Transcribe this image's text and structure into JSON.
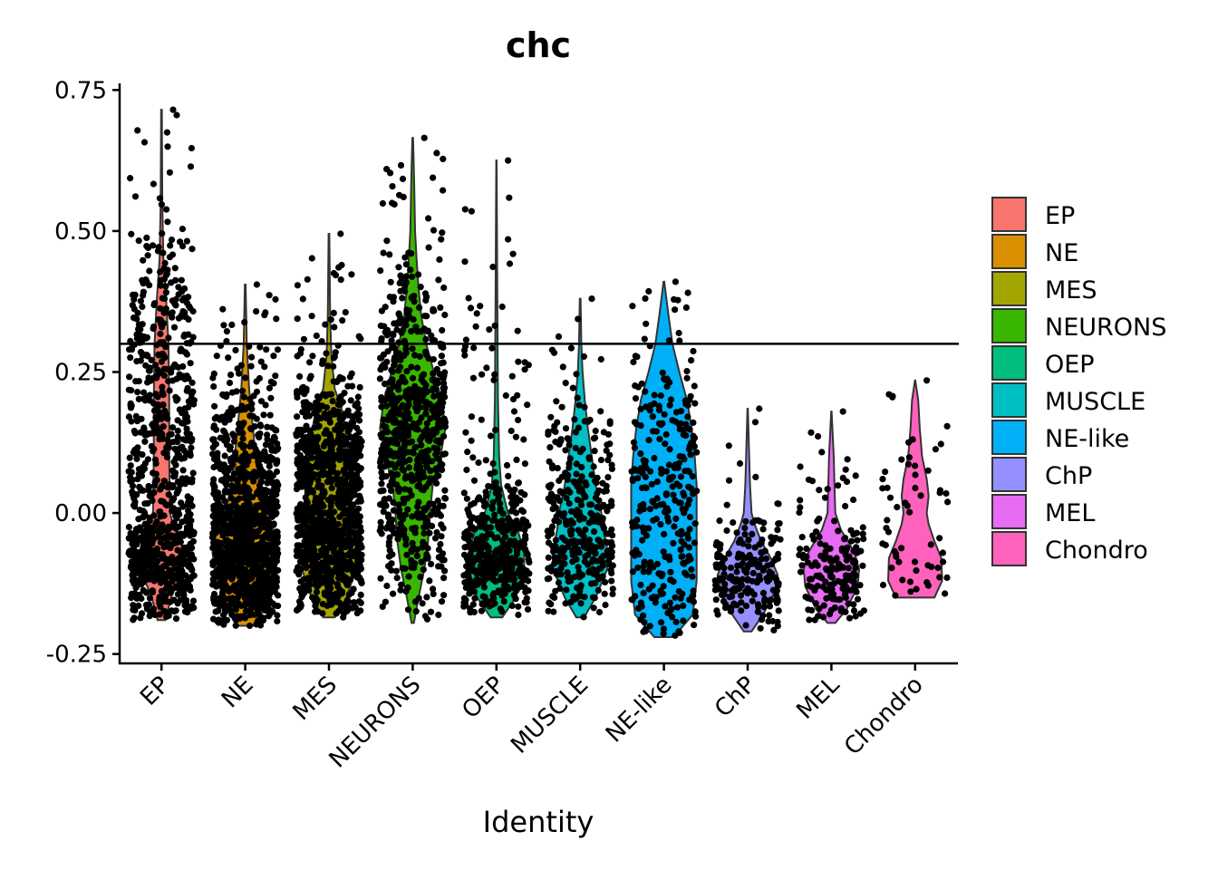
{
  "chart_data": {
    "type": "violin",
    "title": "chc",
    "xlabel": "Identity",
    "ylabel": "",
    "ylim": [
      -0.265,
      0.765
    ],
    "yticks": [
      -0.25,
      0.0,
      0.25,
      0.5,
      0.75
    ],
    "ytick_labels": [
      "-0.25",
      "0.00",
      "0.25",
      "0.50",
      "0.75"
    ],
    "reference_line": 0.3,
    "legend_position": "right",
    "grid": false,
    "categories": [
      "EP",
      "NE",
      "MES",
      "NEURONS",
      "OEP",
      "MUSCLE",
      "NE-like",
      "ChP",
      "MEL",
      "Chondro"
    ],
    "series": [
      {
        "name": "EP",
        "color": "#F8766D",
        "min": -0.19,
        "max": 0.715,
        "max_point": 0.715,
        "profile": [
          [
            -0.19,
            0.1
          ],
          [
            -0.15,
            0.25
          ],
          [
            -0.1,
            0.55
          ],
          [
            -0.08,
            0.6
          ],
          [
            -0.05,
            0.5
          ],
          [
            -0.02,
            0.3
          ],
          [
            0.0,
            0.22
          ],
          [
            0.1,
            0.2
          ],
          [
            0.2,
            0.2
          ],
          [
            0.3,
            0.18
          ],
          [
            0.38,
            0.12
          ],
          [
            0.45,
            0.05
          ],
          [
            0.55,
            0.02
          ],
          [
            0.715,
            0.01
          ]
        ]
      },
      {
        "name": "NE",
        "color": "#D89000",
        "min": -0.2,
        "max": 0.405,
        "max_point": 0.405,
        "profile": [
          [
            -0.2,
            0.2
          ],
          [
            -0.16,
            0.5
          ],
          [
            -0.1,
            0.8
          ],
          [
            -0.07,
            0.85
          ],
          [
            -0.02,
            0.7
          ],
          [
            0.02,
            0.45
          ],
          [
            0.08,
            0.3
          ],
          [
            0.15,
            0.2
          ],
          [
            0.22,
            0.1
          ],
          [
            0.3,
            0.04
          ],
          [
            0.405,
            0.01
          ]
        ]
      },
      {
        "name": "MES",
        "color": "#A3A500",
        "min": -0.185,
        "max": 0.495,
        "max_point": 0.495,
        "profile": [
          [
            -0.185,
            0.15
          ],
          [
            -0.15,
            0.45
          ],
          [
            -0.1,
            0.7
          ],
          [
            -0.07,
            0.72
          ],
          [
            -0.02,
            0.6
          ],
          [
            0.05,
            0.55
          ],
          [
            0.12,
            0.5
          ],
          [
            0.18,
            0.35
          ],
          [
            0.22,
            0.15
          ],
          [
            0.28,
            0.06
          ],
          [
            0.35,
            0.03
          ],
          [
            0.495,
            0.01
          ]
        ]
      },
      {
        "name": "NEURONS",
        "color": "#39B600",
        "min": -0.195,
        "max": 0.665,
        "max_point": 0.665,
        "profile": [
          [
            -0.195,
            0.03
          ],
          [
            -0.15,
            0.15
          ],
          [
            -0.1,
            0.3
          ],
          [
            -0.05,
            0.4
          ],
          [
            0.0,
            0.45
          ],
          [
            0.05,
            0.52
          ],
          [
            0.1,
            0.72
          ],
          [
            0.15,
            0.85
          ],
          [
            0.2,
            0.75
          ],
          [
            0.25,
            0.55
          ],
          [
            0.3,
            0.35
          ],
          [
            0.35,
            0.22
          ],
          [
            0.4,
            0.15
          ],
          [
            0.45,
            0.1
          ],
          [
            0.5,
            0.06
          ],
          [
            0.58,
            0.04
          ],
          [
            0.665,
            0.01
          ]
        ]
      },
      {
        "name": "OEP",
        "color": "#00BF7D",
        "min": -0.185,
        "max": 0.625,
        "max_point": 0.625,
        "profile": [
          [
            -0.185,
            0.15
          ],
          [
            -0.15,
            0.5
          ],
          [
            -0.1,
            0.72
          ],
          [
            -0.07,
            0.72
          ],
          [
            -0.03,
            0.55
          ],
          [
            0.0,
            0.3
          ],
          [
            0.05,
            0.12
          ],
          [
            0.1,
            0.07
          ],
          [
            0.2,
            0.04
          ],
          [
            0.3,
            0.03
          ],
          [
            0.4,
            0.02
          ],
          [
            0.625,
            0.005
          ]
        ]
      },
      {
        "name": "MUSCLE",
        "color": "#00BFC4",
        "min": -0.185,
        "max": 0.38,
        "max_point": 0.38,
        "profile": [
          [
            -0.185,
            0.1
          ],
          [
            -0.15,
            0.4
          ],
          [
            -0.1,
            0.7
          ],
          [
            -0.07,
            0.72
          ],
          [
            -0.03,
            0.6
          ],
          [
            0.0,
            0.55
          ],
          [
            0.05,
            0.4
          ],
          [
            0.1,
            0.3
          ],
          [
            0.15,
            0.2
          ],
          [
            0.2,
            0.12
          ],
          [
            0.25,
            0.06
          ],
          [
            0.3,
            0.03
          ],
          [
            0.38,
            0.01
          ]
        ]
      },
      {
        "name": "NE-like",
        "color": "#00B0F6",
        "min": -0.22,
        "max": 0.41,
        "max_point": 0.41,
        "profile": [
          [
            -0.22,
            0.25
          ],
          [
            -0.18,
            0.75
          ],
          [
            -0.12,
            0.85
          ],
          [
            -0.05,
            0.85
          ],
          [
            0.0,
            0.85
          ],
          [
            0.05,
            0.85
          ],
          [
            0.1,
            0.8
          ],
          [
            0.15,
            0.72
          ],
          [
            0.2,
            0.6
          ],
          [
            0.25,
            0.4
          ],
          [
            0.3,
            0.22
          ],
          [
            0.35,
            0.12
          ],
          [
            0.41,
            0.01
          ]
        ]
      },
      {
        "name": "ChP",
        "color": "#9590FF",
        "min": -0.21,
        "max": 0.185,
        "max_point": 0.185,
        "profile": [
          [
            -0.21,
            0.1
          ],
          [
            -0.18,
            0.4
          ],
          [
            -0.14,
            0.7
          ],
          [
            -0.11,
            0.78
          ],
          [
            -0.08,
            0.6
          ],
          [
            -0.05,
            0.35
          ],
          [
            -0.02,
            0.18
          ],
          [
            0.0,
            0.1
          ],
          [
            0.05,
            0.06
          ],
          [
            0.1,
            0.04
          ],
          [
            0.185,
            0.005
          ]
        ]
      },
      {
        "name": "MEL",
        "color": "#E76BF3",
        "min": -0.195,
        "max": 0.18,
        "max_point": 0.18,
        "profile": [
          [
            -0.195,
            0.1
          ],
          [
            -0.17,
            0.4
          ],
          [
            -0.13,
            0.68
          ],
          [
            -0.1,
            0.72
          ],
          [
            -0.07,
            0.6
          ],
          [
            -0.03,
            0.25
          ],
          [
            0.0,
            0.1
          ],
          [
            0.05,
            0.08
          ],
          [
            0.1,
            0.06
          ],
          [
            0.18,
            0.005
          ]
        ]
      },
      {
        "name": "Chondro",
        "color": "#FF62BC",
        "min": -0.15,
        "max": 0.235,
        "max_point": 0.235,
        "profile": [
          [
            -0.15,
            0.5
          ],
          [
            -0.12,
            0.7
          ],
          [
            -0.08,
            0.68
          ],
          [
            -0.05,
            0.5
          ],
          [
            -0.02,
            0.35
          ],
          [
            0.0,
            0.3
          ],
          [
            0.03,
            0.35
          ],
          [
            0.06,
            0.3
          ],
          [
            0.1,
            0.18
          ],
          [
            0.15,
            0.12
          ],
          [
            0.2,
            0.08
          ],
          [
            0.235,
            0.005
          ]
        ]
      }
    ]
  }
}
